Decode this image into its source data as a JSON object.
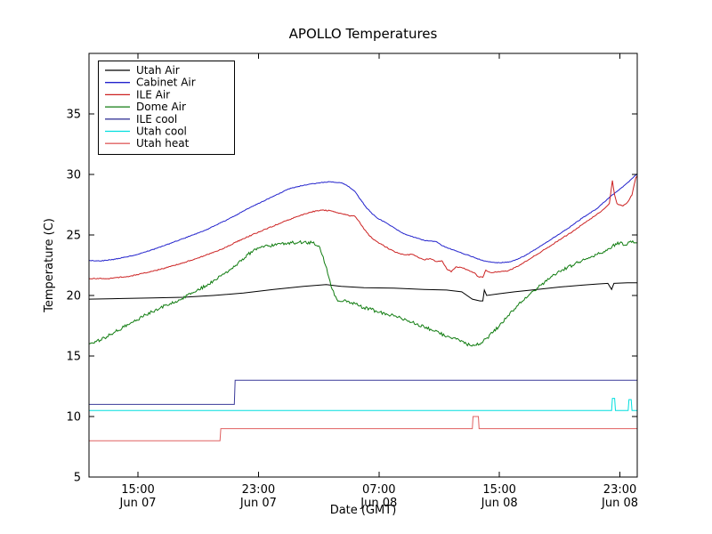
{
  "chart_data": {
    "type": "line",
    "title": "APOLLO Temperatures",
    "xlabel": "Date (GMT)",
    "ylabel": "Temperature (C)",
    "x_unit": "hours since Jun 07 00:00 GMT",
    "xlim": [
      11.75,
      48.15
    ],
    "ylim": [
      5,
      40
    ],
    "yticks": [
      5,
      10,
      15,
      20,
      25,
      30,
      35
    ],
    "xticks": [
      {
        "x": 15,
        "line1": "15:00",
        "line2": "Jun 07"
      },
      {
        "x": 23,
        "line1": "23:00",
        "line2": "Jun 07"
      },
      {
        "x": 31,
        "line1": "07:00",
        "line2": "Jun 08"
      },
      {
        "x": 39,
        "line1": "15:00",
        "line2": "Jun 08"
      },
      {
        "x": 47,
        "line1": "23:00",
        "line2": "Jun 08"
      }
    ],
    "grid": false,
    "legend_position": "upper left",
    "series": [
      {
        "name": "Utah Air",
        "color": "#000000",
        "noise": 0,
        "points": [
          [
            11.75,
            19.7
          ],
          [
            14,
            19.75
          ],
          [
            16,
            19.8
          ],
          [
            18,
            19.85
          ],
          [
            20,
            20.0
          ],
          [
            22,
            20.2
          ],
          [
            24,
            20.5
          ],
          [
            26,
            20.75
          ],
          [
            27.5,
            20.9
          ],
          [
            28.5,
            20.75
          ],
          [
            30,
            20.65
          ],
          [
            32,
            20.6
          ],
          [
            34,
            20.5
          ],
          [
            35.5,
            20.45
          ],
          [
            36.5,
            20.3
          ],
          [
            37.2,
            19.7
          ],
          [
            37.7,
            19.55
          ],
          [
            37.9,
            19.55
          ],
          [
            38.0,
            20.45
          ],
          [
            38.15,
            20.0
          ],
          [
            39,
            20.15
          ],
          [
            40,
            20.3
          ],
          [
            41.5,
            20.5
          ],
          [
            43,
            20.7
          ],
          [
            44.5,
            20.85
          ],
          [
            45.5,
            20.95
          ],
          [
            46.2,
            21.0
          ],
          [
            46.45,
            20.5
          ],
          [
            46.6,
            21.0
          ],
          [
            47.5,
            21.05
          ],
          [
            48.15,
            21.05
          ]
        ]
      },
      {
        "name": "Cabinet Air",
        "color": "#2222cc",
        "noise": 0.03,
        "points": [
          [
            11.75,
            22.9
          ],
          [
            12.5,
            22.85
          ],
          [
            13.5,
            23.0
          ],
          [
            15,
            23.4
          ],
          [
            16.5,
            24.0
          ],
          [
            18,
            24.7
          ],
          [
            19.5,
            25.4
          ],
          [
            21,
            26.3
          ],
          [
            22.5,
            27.3
          ],
          [
            24,
            28.2
          ],
          [
            25,
            28.8
          ],
          [
            26,
            29.1
          ],
          [
            27,
            29.3
          ],
          [
            27.8,
            29.4
          ],
          [
            28.5,
            29.3
          ],
          [
            29,
            29.0
          ],
          [
            29.4,
            28.6
          ],
          [
            29.8,
            27.9
          ],
          [
            30.2,
            27.2
          ],
          [
            30.6,
            26.7
          ],
          [
            31,
            26.3
          ],
          [
            31.5,
            26.0
          ],
          [
            32,
            25.6
          ],
          [
            32.5,
            25.2
          ],
          [
            33,
            24.95
          ],
          [
            33.5,
            24.75
          ],
          [
            34,
            24.55
          ],
          [
            34.4,
            24.5
          ],
          [
            34.8,
            24.45
          ],
          [
            35.2,
            24.1
          ],
          [
            35.6,
            23.9
          ],
          [
            36,
            23.75
          ],
          [
            36.5,
            23.5
          ],
          [
            37,
            23.3
          ],
          [
            37.5,
            23.05
          ],
          [
            38,
            22.85
          ],
          [
            38.5,
            22.75
          ],
          [
            39,
            22.7
          ],
          [
            39.6,
            22.75
          ],
          [
            40,
            22.9
          ],
          [
            40.7,
            23.3
          ],
          [
            41.5,
            23.9
          ],
          [
            42.5,
            24.7
          ],
          [
            43.5,
            25.5
          ],
          [
            44.5,
            26.4
          ],
          [
            45.5,
            27.2
          ],
          [
            46.3,
            28.1
          ],
          [
            47,
            28.8
          ],
          [
            47.6,
            29.4
          ],
          [
            48,
            29.9
          ],
          [
            48.15,
            30.05
          ]
        ]
      },
      {
        "name": "ILE Air",
        "color": "#cc2222",
        "noise": 0.04,
        "points": [
          [
            11.75,
            21.4
          ],
          [
            13,
            21.4
          ],
          [
            14.5,
            21.6
          ],
          [
            16,
            22.0
          ],
          [
            17.5,
            22.5
          ],
          [
            19,
            23.1
          ],
          [
            20.5,
            23.8
          ],
          [
            22,
            24.7
          ],
          [
            23.5,
            25.5
          ],
          [
            24.5,
            26.0
          ],
          [
            25.5,
            26.5
          ],
          [
            26.5,
            26.9
          ],
          [
            27.2,
            27.05
          ],
          [
            27.8,
            27.0
          ],
          [
            28.4,
            26.8
          ],
          [
            29,
            26.6
          ],
          [
            29.4,
            26.55
          ],
          [
            29.7,
            26.1
          ],
          [
            30,
            25.5
          ],
          [
            30.4,
            24.9
          ],
          [
            30.8,
            24.5
          ],
          [
            31.2,
            24.2
          ],
          [
            31.6,
            23.9
          ],
          [
            32,
            23.65
          ],
          [
            32.4,
            23.45
          ],
          [
            32.8,
            23.35
          ],
          [
            33.2,
            23.4
          ],
          [
            33.6,
            23.15
          ],
          [
            34,
            22.95
          ],
          [
            34.4,
            23.05
          ],
          [
            34.8,
            22.8
          ],
          [
            35.2,
            22.85
          ],
          [
            35.5,
            22.2
          ],
          [
            35.8,
            21.95
          ],
          [
            36.1,
            22.35
          ],
          [
            36.5,
            22.3
          ],
          [
            36.9,
            22.1
          ],
          [
            37.3,
            21.9
          ],
          [
            37.6,
            21.55
          ],
          [
            37.9,
            21.5
          ],
          [
            38.1,
            22.1
          ],
          [
            38.4,
            21.9
          ],
          [
            39,
            21.95
          ],
          [
            39.6,
            22.05
          ],
          [
            40.2,
            22.4
          ],
          [
            41,
            23.0
          ],
          [
            42,
            23.8
          ],
          [
            43,
            24.6
          ],
          [
            44,
            25.4
          ],
          [
            45,
            26.3
          ],
          [
            45.8,
            27.0
          ],
          [
            46.3,
            27.6
          ],
          [
            46.5,
            29.5
          ],
          [
            46.65,
            28.3
          ],
          [
            46.8,
            27.6
          ],
          [
            47.2,
            27.4
          ],
          [
            47.5,
            27.7
          ],
          [
            47.8,
            28.3
          ],
          [
            48.05,
            29.7
          ],
          [
            48.15,
            29.9
          ]
        ]
      },
      {
        "name": "Dome Air",
        "color": "#107c10",
        "noise": 0.13,
        "points": [
          [
            11.75,
            16.0
          ],
          [
            12.5,
            16.3
          ],
          [
            13.5,
            17.0
          ],
          [
            14.5,
            17.7
          ],
          [
            15.5,
            18.4
          ],
          [
            16.5,
            19.0
          ],
          [
            17.5,
            19.5
          ],
          [
            18.5,
            20.1
          ],
          [
            19.5,
            20.8
          ],
          [
            20.5,
            21.6
          ],
          [
            21.5,
            22.5
          ],
          [
            22.3,
            23.4
          ],
          [
            23,
            23.9
          ],
          [
            23.7,
            24.1
          ],
          [
            24.4,
            24.3
          ],
          [
            25.2,
            24.35
          ],
          [
            26,
            24.4
          ],
          [
            26.6,
            24.35
          ],
          [
            27,
            24.1
          ],
          [
            27.3,
            23.2
          ],
          [
            27.6,
            21.8
          ],
          [
            27.9,
            20.5
          ],
          [
            28.2,
            19.7
          ],
          [
            28.5,
            19.5
          ],
          [
            28.8,
            19.6
          ],
          [
            29.2,
            19.4
          ],
          [
            29.6,
            19.2
          ],
          [
            30,
            19.0
          ],
          [
            30.5,
            18.85
          ],
          [
            31,
            18.6
          ],
          [
            31.5,
            18.5
          ],
          [
            32,
            18.3
          ],
          [
            32.5,
            18.1
          ],
          [
            33,
            17.9
          ],
          [
            33.5,
            17.65
          ],
          [
            34,
            17.4
          ],
          [
            34.5,
            17.15
          ],
          [
            35,
            16.9
          ],
          [
            35.5,
            16.6
          ],
          [
            36,
            16.5
          ],
          [
            36.4,
            16.2
          ],
          [
            36.8,
            16.0
          ],
          [
            37.1,
            15.85
          ],
          [
            37.4,
            15.9
          ],
          [
            37.8,
            16.1
          ],
          [
            38.2,
            16.5
          ],
          [
            38.6,
            17.0
          ],
          [
            39,
            17.5
          ],
          [
            39.5,
            18.2
          ],
          [
            40,
            18.9
          ],
          [
            40.5,
            19.5
          ],
          [
            41,
            20.1
          ],
          [
            41.5,
            20.6
          ],
          [
            42,
            21.1
          ],
          [
            42.5,
            21.6
          ],
          [
            43,
            22.0
          ],
          [
            43.5,
            22.3
          ],
          [
            44,
            22.6
          ],
          [
            44.5,
            22.9
          ],
          [
            45,
            23.1
          ],
          [
            45.5,
            23.4
          ],
          [
            46,
            23.6
          ],
          [
            46.5,
            24.1
          ],
          [
            47,
            24.35
          ],
          [
            47.3,
            24.15
          ],
          [
            47.7,
            24.5
          ],
          [
            48.15,
            24.35
          ]
        ]
      },
      {
        "name": "ILE cool",
        "color": "#3a3a99",
        "noise": 0,
        "points": [
          [
            11.75,
            11.0
          ],
          [
            21.4,
            11.0
          ],
          [
            21.45,
            13.0
          ],
          [
            48.15,
            13.0
          ]
        ]
      },
      {
        "name": "Utah cool",
        "color": "#00dede",
        "noise": 0,
        "points": [
          [
            11.75,
            10.5
          ],
          [
            46.45,
            10.5
          ],
          [
            46.5,
            11.5
          ],
          [
            46.65,
            11.5
          ],
          [
            46.7,
            10.5
          ],
          [
            47.55,
            10.5
          ],
          [
            47.6,
            11.4
          ],
          [
            47.75,
            11.4
          ],
          [
            47.8,
            10.5
          ],
          [
            48.15,
            10.5
          ]
        ]
      },
      {
        "name": "Utah heat",
        "color": "#e06060",
        "noise": 0,
        "points": [
          [
            11.75,
            8.0
          ],
          [
            20.45,
            8.0
          ],
          [
            20.5,
            9.0
          ],
          [
            37.2,
            9.0
          ],
          [
            37.25,
            10.0
          ],
          [
            37.6,
            10.0
          ],
          [
            37.65,
            9.0
          ],
          [
            48.15,
            9.0
          ]
        ]
      }
    ]
  }
}
